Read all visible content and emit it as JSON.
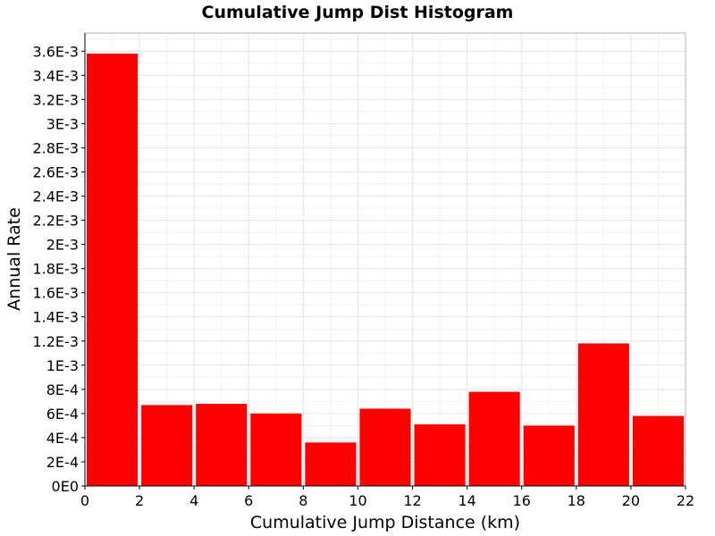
{
  "chart_data": {
    "type": "bar",
    "title": "Cumulative Jump Dist Histogram",
    "xlabel": "Cumulative Jump Distance (km)",
    "ylabel": "Annual Rate",
    "xlim": [
      0,
      22
    ],
    "ylim": [
      0,
      0.00375
    ],
    "grid": true,
    "bar_color": "#ff0000",
    "x_ticks": [
      {
        "value": 0,
        "label": "0"
      },
      {
        "value": 2,
        "label": "2"
      },
      {
        "value": 4,
        "label": "4"
      },
      {
        "value": 6,
        "label": "6"
      },
      {
        "value": 8,
        "label": "8"
      },
      {
        "value": 10,
        "label": "10"
      },
      {
        "value": 12,
        "label": "12"
      },
      {
        "value": 14,
        "label": "14"
      },
      {
        "value": 16,
        "label": "16"
      },
      {
        "value": 18,
        "label": "18"
      },
      {
        "value": 20,
        "label": "20"
      },
      {
        "value": 22,
        "label": "22"
      }
    ],
    "y_ticks": [
      {
        "value": 0,
        "label": "0E0"
      },
      {
        "value": 0.0002,
        "label": "2E-4"
      },
      {
        "value": 0.0004,
        "label": "4E-4"
      },
      {
        "value": 0.0006,
        "label": "6E-4"
      },
      {
        "value": 0.0008,
        "label": "8E-4"
      },
      {
        "value": 0.001,
        "label": "1E-3"
      },
      {
        "value": 0.0012,
        "label": "1.2E-3"
      },
      {
        "value": 0.0014,
        "label": "1.4E-3"
      },
      {
        "value": 0.0016,
        "label": "1.6E-3"
      },
      {
        "value": 0.0018,
        "label": "1.8E-3"
      },
      {
        "value": 0.002,
        "label": "2E-3"
      },
      {
        "value": 0.0022,
        "label": "2.2E-3"
      },
      {
        "value": 0.0024,
        "label": "2.4E-3"
      },
      {
        "value": 0.0026,
        "label": "2.6E-3"
      },
      {
        "value": 0.0028,
        "label": "2.8E-3"
      },
      {
        "value": 0.003,
        "label": "3E-3"
      },
      {
        "value": 0.0032,
        "label": "3.2E-3"
      },
      {
        "value": 0.0034,
        "label": "3.4E-3"
      },
      {
        "value": 0.0036,
        "label": "3.6E-3"
      }
    ],
    "bars": [
      {
        "x0": 0,
        "x1": 2,
        "value": 0.00358
      },
      {
        "x0": 2,
        "x1": 4,
        "value": 0.00067
      },
      {
        "x0": 4,
        "x1": 6,
        "value": 0.00068
      },
      {
        "x0": 6,
        "x1": 8,
        "value": 0.0006
      },
      {
        "x0": 8,
        "x1": 10,
        "value": 0.00036
      },
      {
        "x0": 10,
        "x1": 12,
        "value": 0.00064
      },
      {
        "x0": 12,
        "x1": 14,
        "value": 0.00051
      },
      {
        "x0": 14,
        "x1": 16,
        "value": 0.00078
      },
      {
        "x0": 16,
        "x1": 18,
        "value": 0.0005
      },
      {
        "x0": 18,
        "x1": 20,
        "value": 0.00118
      },
      {
        "x0": 20,
        "x1": 22,
        "value": 0.00058
      }
    ]
  }
}
